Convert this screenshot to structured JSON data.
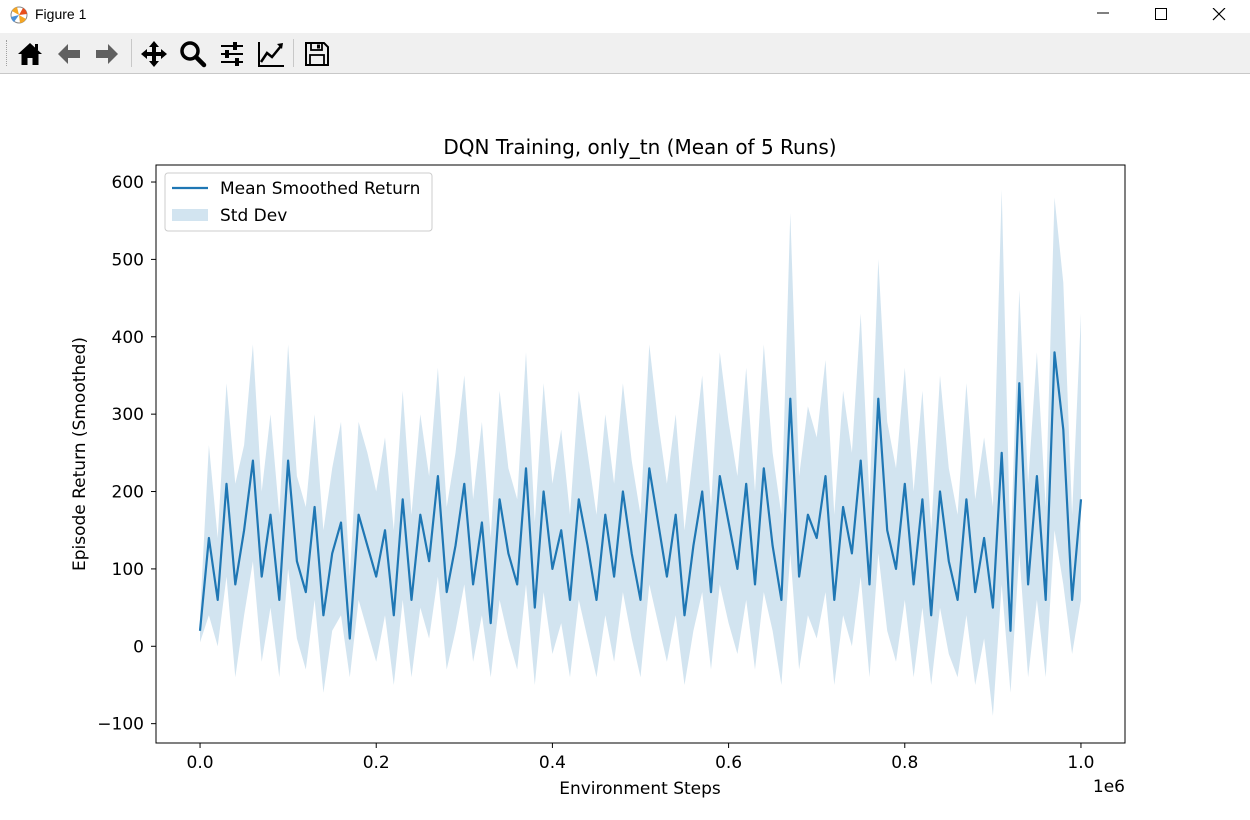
{
  "window": {
    "title": "Figure 1",
    "app_icon": "matplotlib-icon",
    "controls": [
      "minimize-icon",
      "maximize-icon",
      "close-icon"
    ]
  },
  "toolbar": {
    "buttons": [
      {
        "name": "home",
        "icon": "home-icon"
      },
      {
        "name": "back",
        "icon": "arrow-left-icon"
      },
      {
        "name": "forward",
        "icon": "arrow-right-icon"
      },
      {
        "name": "pan",
        "icon": "move-icon"
      },
      {
        "name": "zoom",
        "icon": "search-icon"
      },
      {
        "name": "subplots",
        "icon": "sliders-icon"
      },
      {
        "name": "customize",
        "icon": "line-chart-icon"
      },
      {
        "name": "save",
        "icon": "floppy-disk-icon"
      }
    ]
  },
  "chart_data": {
    "type": "line",
    "title": "DQN Training, only_tn (Mean of 5 Runs)",
    "xlabel": "Environment Steps",
    "ylabel": "Episode Return (Smoothed)",
    "x_offset_label": "1e6",
    "xlim": [
      -0.05,
      1.05
    ],
    "ylim": [
      -125,
      622
    ],
    "x_ticks": [
      0.0,
      0.2,
      0.4,
      0.6,
      0.8,
      1.0
    ],
    "x_tick_labels": [
      "0.0",
      "0.2",
      "0.4",
      "0.6",
      "0.8",
      "1.0"
    ],
    "y_ticks": [
      -100,
      0,
      100,
      200,
      300,
      400,
      500,
      600
    ],
    "y_tick_labels": [
      "−100",
      "0",
      "100",
      "200",
      "300",
      "400",
      "500",
      "600"
    ],
    "legend": {
      "placement": "upper-left",
      "entries": [
        "Mean Smoothed Return",
        "Std Dev"
      ]
    },
    "grid": false,
    "colors": {
      "line": "#1f77b4",
      "band": "#1f77b4",
      "band_alpha": 0.2
    },
    "series": [
      {
        "name": "Mean Smoothed Return",
        "x": [
          0.0,
          0.01,
          0.02,
          0.03,
          0.04,
          0.05,
          0.06,
          0.07,
          0.08,
          0.09,
          0.1,
          0.11,
          0.12,
          0.13,
          0.14,
          0.15,
          0.16,
          0.17,
          0.18,
          0.19,
          0.2,
          0.21,
          0.22,
          0.23,
          0.24,
          0.25,
          0.26,
          0.27,
          0.28,
          0.29,
          0.3,
          0.31,
          0.32,
          0.33,
          0.34,
          0.35,
          0.36,
          0.37,
          0.38,
          0.39,
          0.4,
          0.41,
          0.42,
          0.43,
          0.44,
          0.45,
          0.46,
          0.47,
          0.48,
          0.49,
          0.5,
          0.51,
          0.52,
          0.53,
          0.54,
          0.55,
          0.56,
          0.57,
          0.58,
          0.59,
          0.6,
          0.61,
          0.62,
          0.63,
          0.64,
          0.65,
          0.66,
          0.67,
          0.68,
          0.69,
          0.7,
          0.71,
          0.72,
          0.73,
          0.74,
          0.75,
          0.76,
          0.77,
          0.78,
          0.79,
          0.8,
          0.81,
          0.82,
          0.83,
          0.84,
          0.85,
          0.86,
          0.87,
          0.88,
          0.89,
          0.9,
          0.91,
          0.92,
          0.93,
          0.94,
          0.95,
          0.96,
          0.97,
          0.98,
          0.99,
          1.0
        ],
        "mean": [
          20,
          140,
          60,
          210,
          80,
          150,
          240,
          90,
          170,
          60,
          240,
          110,
          70,
          180,
          40,
          120,
          160,
          10,
          170,
          130,
          90,
          150,
          40,
          190,
          60,
          170,
          110,
          220,
          70,
          130,
          210,
          80,
          160,
          30,
          190,
          120,
          80,
          230,
          50,
          200,
          100,
          150,
          60,
          190,
          130,
          60,
          170,
          90,
          200,
          120,
          60,
          230,
          160,
          90,
          170,
          40,
          130,
          200,
          70,
          220,
          160,
          100,
          210,
          80,
          230,
          130,
          60,
          320,
          90,
          170,
          140,
          220,
          60,
          180,
          120,
          240,
          80,
          320,
          150,
          100,
          210,
          80,
          190,
          40,
          200,
          110,
          60,
          190,
          70,
          140,
          50,
          250,
          20,
          340,
          80,
          220,
          60,
          380,
          280,
          60,
          190
        ],
        "std_lower": [
          5,
          40,
          0,
          90,
          -40,
          40,
          110,
          -20,
          50,
          -40,
          100,
          10,
          -30,
          60,
          -60,
          20,
          40,
          -40,
          60,
          20,
          -20,
          40,
          -50,
          60,
          -40,
          50,
          10,
          90,
          -30,
          20,
          80,
          -20,
          40,
          -40,
          60,
          10,
          -30,
          80,
          -50,
          70,
          -10,
          30,
          -40,
          60,
          10,
          -40,
          40,
          -20,
          70,
          10,
          -40,
          80,
          30,
          -20,
          40,
          -50,
          20,
          70,
          -30,
          80,
          30,
          -10,
          60,
          -30,
          70,
          20,
          -50,
          120,
          -30,
          40,
          10,
          70,
          -50,
          40,
          0,
          90,
          -40,
          120,
          20,
          -20,
          60,
          -40,
          50,
          -50,
          50,
          -10,
          -40,
          40,
          -50,
          10,
          -90,
          80,
          -60,
          120,
          -40,
          60,
          -40,
          150,
          80,
          -10,
          60
        ],
        "std_upper": [
          40,
          260,
          140,
          340,
          210,
          260,
          390,
          200,
          300,
          170,
          390,
          220,
          180,
          300,
          150,
          230,
          290,
          90,
          290,
          250,
          200,
          270,
          150,
          330,
          170,
          300,
          220,
          360,
          180,
          250,
          350,
          190,
          290,
          140,
          330,
          230,
          190,
          380,
          160,
          340,
          210,
          280,
          170,
          330,
          250,
          170,
          300,
          210,
          340,
          240,
          170,
          390,
          290,
          210,
          300,
          150,
          250,
          350,
          180,
          380,
          290,
          220,
          360,
          200,
          390,
          250,
          170,
          560,
          220,
          310,
          270,
          370,
          170,
          330,
          250,
          430,
          190,
          500,
          290,
          230,
          360,
          200,
          330,
          150,
          350,
          230,
          170,
          340,
          190,
          270,
          180,
          590,
          120,
          460,
          210,
          380,
          180,
          580,
          470,
          170,
          430
        ]
      }
    ]
  }
}
